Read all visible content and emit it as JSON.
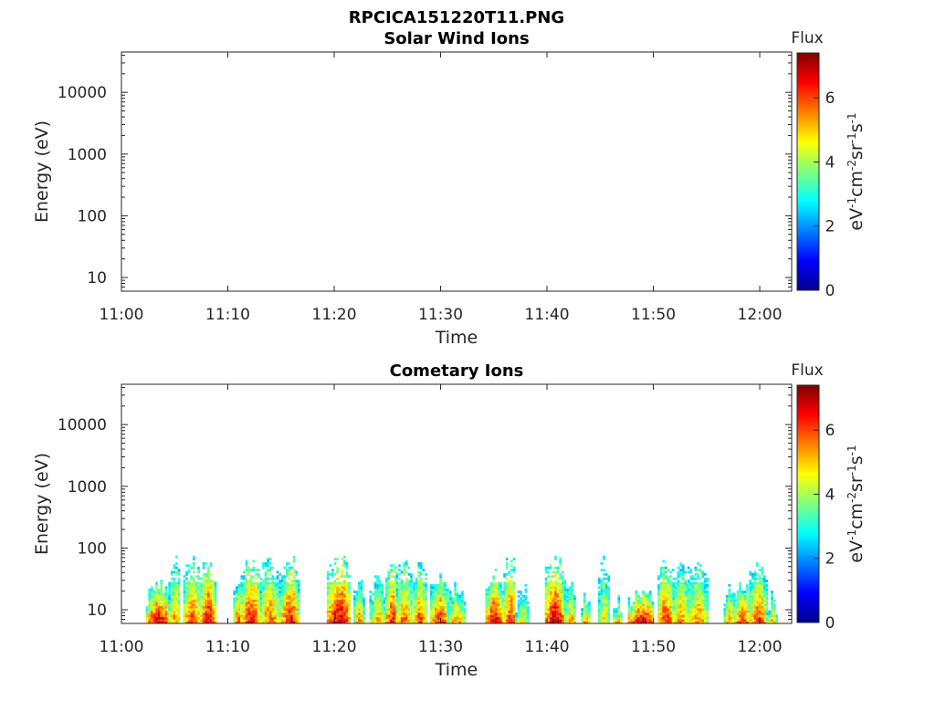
{
  "figure_title": "RPCICA151220T11.PNG",
  "chart_data": [
    {
      "type": "heatmap",
      "title": "Solar Wind Ions",
      "xlabel": "Time",
      "ylabel": "Energy (eV)",
      "xticks": [
        "11:00",
        "11:10",
        "11:20",
        "11:30",
        "11:40",
        "11:50",
        "12:00"
      ],
      "xlim_minutes": [
        0,
        63
      ],
      "yscale": "log",
      "ylim": [
        6,
        45000
      ],
      "yticks": [
        10,
        100,
        1000,
        10000
      ],
      "ytick_labels": [
        "10",
        "100",
        "1000",
        "10000"
      ],
      "colorbar": {
        "title": "Flux",
        "label": "eV-1cm-2sr-1s-1",
        "range": [
          0,
          7.4
        ],
        "ticks": [
          "0",
          "2",
          "4",
          "6"
        ],
        "colormap": "jet"
      },
      "bursts": []
    },
    {
      "type": "heatmap",
      "title": "Cometary Ions",
      "xlabel": "Time",
      "ylabel": "Energy (eV)",
      "xticks": [
        "11:00",
        "11:10",
        "11:20",
        "11:30",
        "11:40",
        "11:50",
        "12:00"
      ],
      "xlim_minutes": [
        0,
        63
      ],
      "yscale": "log",
      "ylim": [
        6,
        45000
      ],
      "yticks": [
        10,
        100,
        1000,
        10000
      ],
      "ytick_labels": [
        "10",
        "100",
        "1000",
        "10000"
      ],
      "colorbar": {
        "title": "Flux",
        "label": "eV-1cm-2sr-1s-1",
        "range": [
          0,
          7.4
        ],
        "ticks": [
          "0",
          "2",
          "4",
          "6"
        ],
        "colormap": "jet"
      },
      "bursts": [
        {
          "t0": 2.3,
          "t1": 4.6,
          "emax": 32,
          "peak": 6.9
        },
        {
          "t0": 4.4,
          "t1": 5.5,
          "emax": 80,
          "peak": 5.5
        },
        {
          "t0": 5.8,
          "t1": 7.3,
          "emax": 80,
          "peak": 6.2
        },
        {
          "t0": 7.4,
          "t1": 8.8,
          "emax": 80,
          "peak": 6.8
        },
        {
          "t0": 10.5,
          "t1": 11.3,
          "emax": 40,
          "peak": 6.0
        },
        {
          "t0": 11.2,
          "t1": 13.0,
          "emax": 80,
          "peak": 6.6
        },
        {
          "t0": 13.0,
          "t1": 14.8,
          "emax": 80,
          "peak": 5.8
        },
        {
          "t0": 15.0,
          "t1": 16.6,
          "emax": 80,
          "peak": 6.6
        },
        {
          "t0": 19.3,
          "t1": 21.5,
          "emax": 80,
          "peak": 7.0
        },
        {
          "t0": 21.8,
          "t1": 22.7,
          "emax": 35,
          "peak": 5.6
        },
        {
          "t0": 23.3,
          "t1": 24.7,
          "emax": 40,
          "peak": 5.3
        },
        {
          "t0": 24.8,
          "t1": 26.0,
          "emax": 80,
          "peak": 6.6
        },
        {
          "t0": 25.8,
          "t1": 27.2,
          "emax": 80,
          "peak": 5.8
        },
        {
          "t0": 27.4,
          "t1": 28.6,
          "emax": 80,
          "peak": 6.1
        },
        {
          "t0": 29.0,
          "t1": 30.6,
          "emax": 40,
          "peak": 6.5
        },
        {
          "t0": 30.6,
          "t1": 32.2,
          "emax": 30,
          "peak": 5.4
        },
        {
          "t0": 34.2,
          "t1": 35.8,
          "emax": 45,
          "peak": 6.9
        },
        {
          "t0": 35.9,
          "t1": 37.0,
          "emax": 80,
          "peak": 6.4
        },
        {
          "t0": 37.0,
          "t1": 38.2,
          "emax": 30,
          "peak": 4.8
        },
        {
          "t0": 39.8,
          "t1": 41.6,
          "emax": 80,
          "peak": 7.1
        },
        {
          "t0": 41.6,
          "t1": 42.7,
          "emax": 40,
          "peak": 5.4
        },
        {
          "t0": 43.2,
          "t1": 44.0,
          "emax": 20,
          "peak": 5.8
        },
        {
          "t0": 44.8,
          "t1": 45.8,
          "emax": 80,
          "peak": 4.9
        },
        {
          "t0": 46.2,
          "t1": 47.0,
          "emax": 18,
          "peak": 5.4
        },
        {
          "t0": 47.6,
          "t1": 50.0,
          "emax": 24,
          "peak": 7.0
        },
        {
          "t0": 50.4,
          "t1": 51.8,
          "emax": 80,
          "peak": 6.4
        },
        {
          "t0": 51.8,
          "t1": 53.2,
          "emax": 80,
          "peak": 5.6
        },
        {
          "t0": 53.2,
          "t1": 55.0,
          "emax": 80,
          "peak": 5.6
        },
        {
          "t0": 56.6,
          "t1": 57.6,
          "emax": 28,
          "peak": 5.4
        },
        {
          "t0": 57.6,
          "t1": 59.0,
          "emax": 35,
          "peak": 6.4
        },
        {
          "t0": 59.0,
          "t1": 60.6,
          "emax": 80,
          "peak": 6.1
        },
        {
          "t0": 60.6,
          "t1": 61.6,
          "emax": 20,
          "peak": 5.2
        }
      ]
    }
  ]
}
